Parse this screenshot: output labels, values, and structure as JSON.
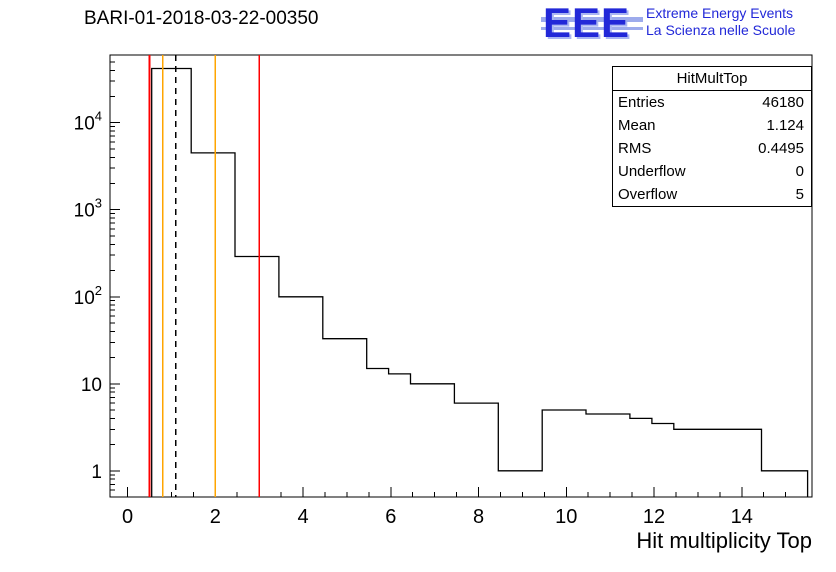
{
  "header": {
    "title": "BARI-01-2018-03-22-00350"
  },
  "logo": {
    "text": "EEE",
    "line1": "Extreme Energy Events",
    "line2": "La Scienza nelle Scuole",
    "color": "#2228d8"
  },
  "stats": {
    "title": "HitMultTop",
    "rows": [
      {
        "label": "Entries",
        "value": "46180"
      },
      {
        "label": "Mean",
        "value": "1.124"
      },
      {
        "label": "RMS",
        "value": "0.4495"
      },
      {
        "label": "Underflow",
        "value": "0"
      },
      {
        "label": "Overflow",
        "value": "5"
      }
    ]
  },
  "chart_data": {
    "type": "bar",
    "subtype": "step-histogram",
    "title": "BARI-01-2018-03-22-00350",
    "xlabel": "Hit multiplicity Top",
    "ylabel": "",
    "y_scale": "log",
    "x_range": [
      -0.4,
      15.6
    ],
    "y_range": [
      0.5,
      60000
    ],
    "x_major_ticks": [
      0,
      2,
      4,
      6,
      8,
      10,
      12,
      14
    ],
    "x_minor_step": 0.5,
    "y_decade_exponents": [
      0,
      1,
      2,
      3,
      4
    ],
    "grid": false,
    "line_color": "#000000",
    "bins": [
      {
        "x1": 0.55,
        "x2": 1.45,
        "count": 42000
      },
      {
        "x1": 1.45,
        "x2": 2.45,
        "count": 4500
      },
      {
        "x1": 2.45,
        "x2": 3.45,
        "count": 290
      },
      {
        "x1": 3.45,
        "x2": 4.45,
        "count": 100
      },
      {
        "x1": 4.45,
        "x2": 5.45,
        "count": 33
      },
      {
        "x1": 5.45,
        "x2": 5.95,
        "count": 15
      },
      {
        "x1": 5.95,
        "x2": 6.45,
        "count": 13
      },
      {
        "x1": 6.45,
        "x2": 7.45,
        "count": 10
      },
      {
        "x1": 7.45,
        "x2": 8.45,
        "count": 6
      },
      {
        "x1": 8.45,
        "x2": 9.45,
        "count": 1
      },
      {
        "x1": 9.45,
        "x2": 10.45,
        "count": 5
      },
      {
        "x1": 10.45,
        "x2": 11.45,
        "count": 4.5
      },
      {
        "x1": 11.45,
        "x2": 11.95,
        "count": 4
      },
      {
        "x1": 11.95,
        "x2": 12.45,
        "count": 3.5
      },
      {
        "x1": 12.45,
        "x2": 14.45,
        "count": 3
      },
      {
        "x1": 14.45,
        "x2": 15.5,
        "count": 1
      }
    ],
    "vlines": [
      {
        "x": 0.5,
        "color": "#ff0000",
        "style": "solid"
      },
      {
        "x": 0.8,
        "color": "#ffa500",
        "style": "solid"
      },
      {
        "x": 1.1,
        "color": "#000000",
        "style": "dashed"
      },
      {
        "x": 2.0,
        "color": "#ffa500",
        "style": "solid"
      },
      {
        "x": 3.0,
        "color": "#ff0000",
        "style": "solid"
      }
    ]
  }
}
